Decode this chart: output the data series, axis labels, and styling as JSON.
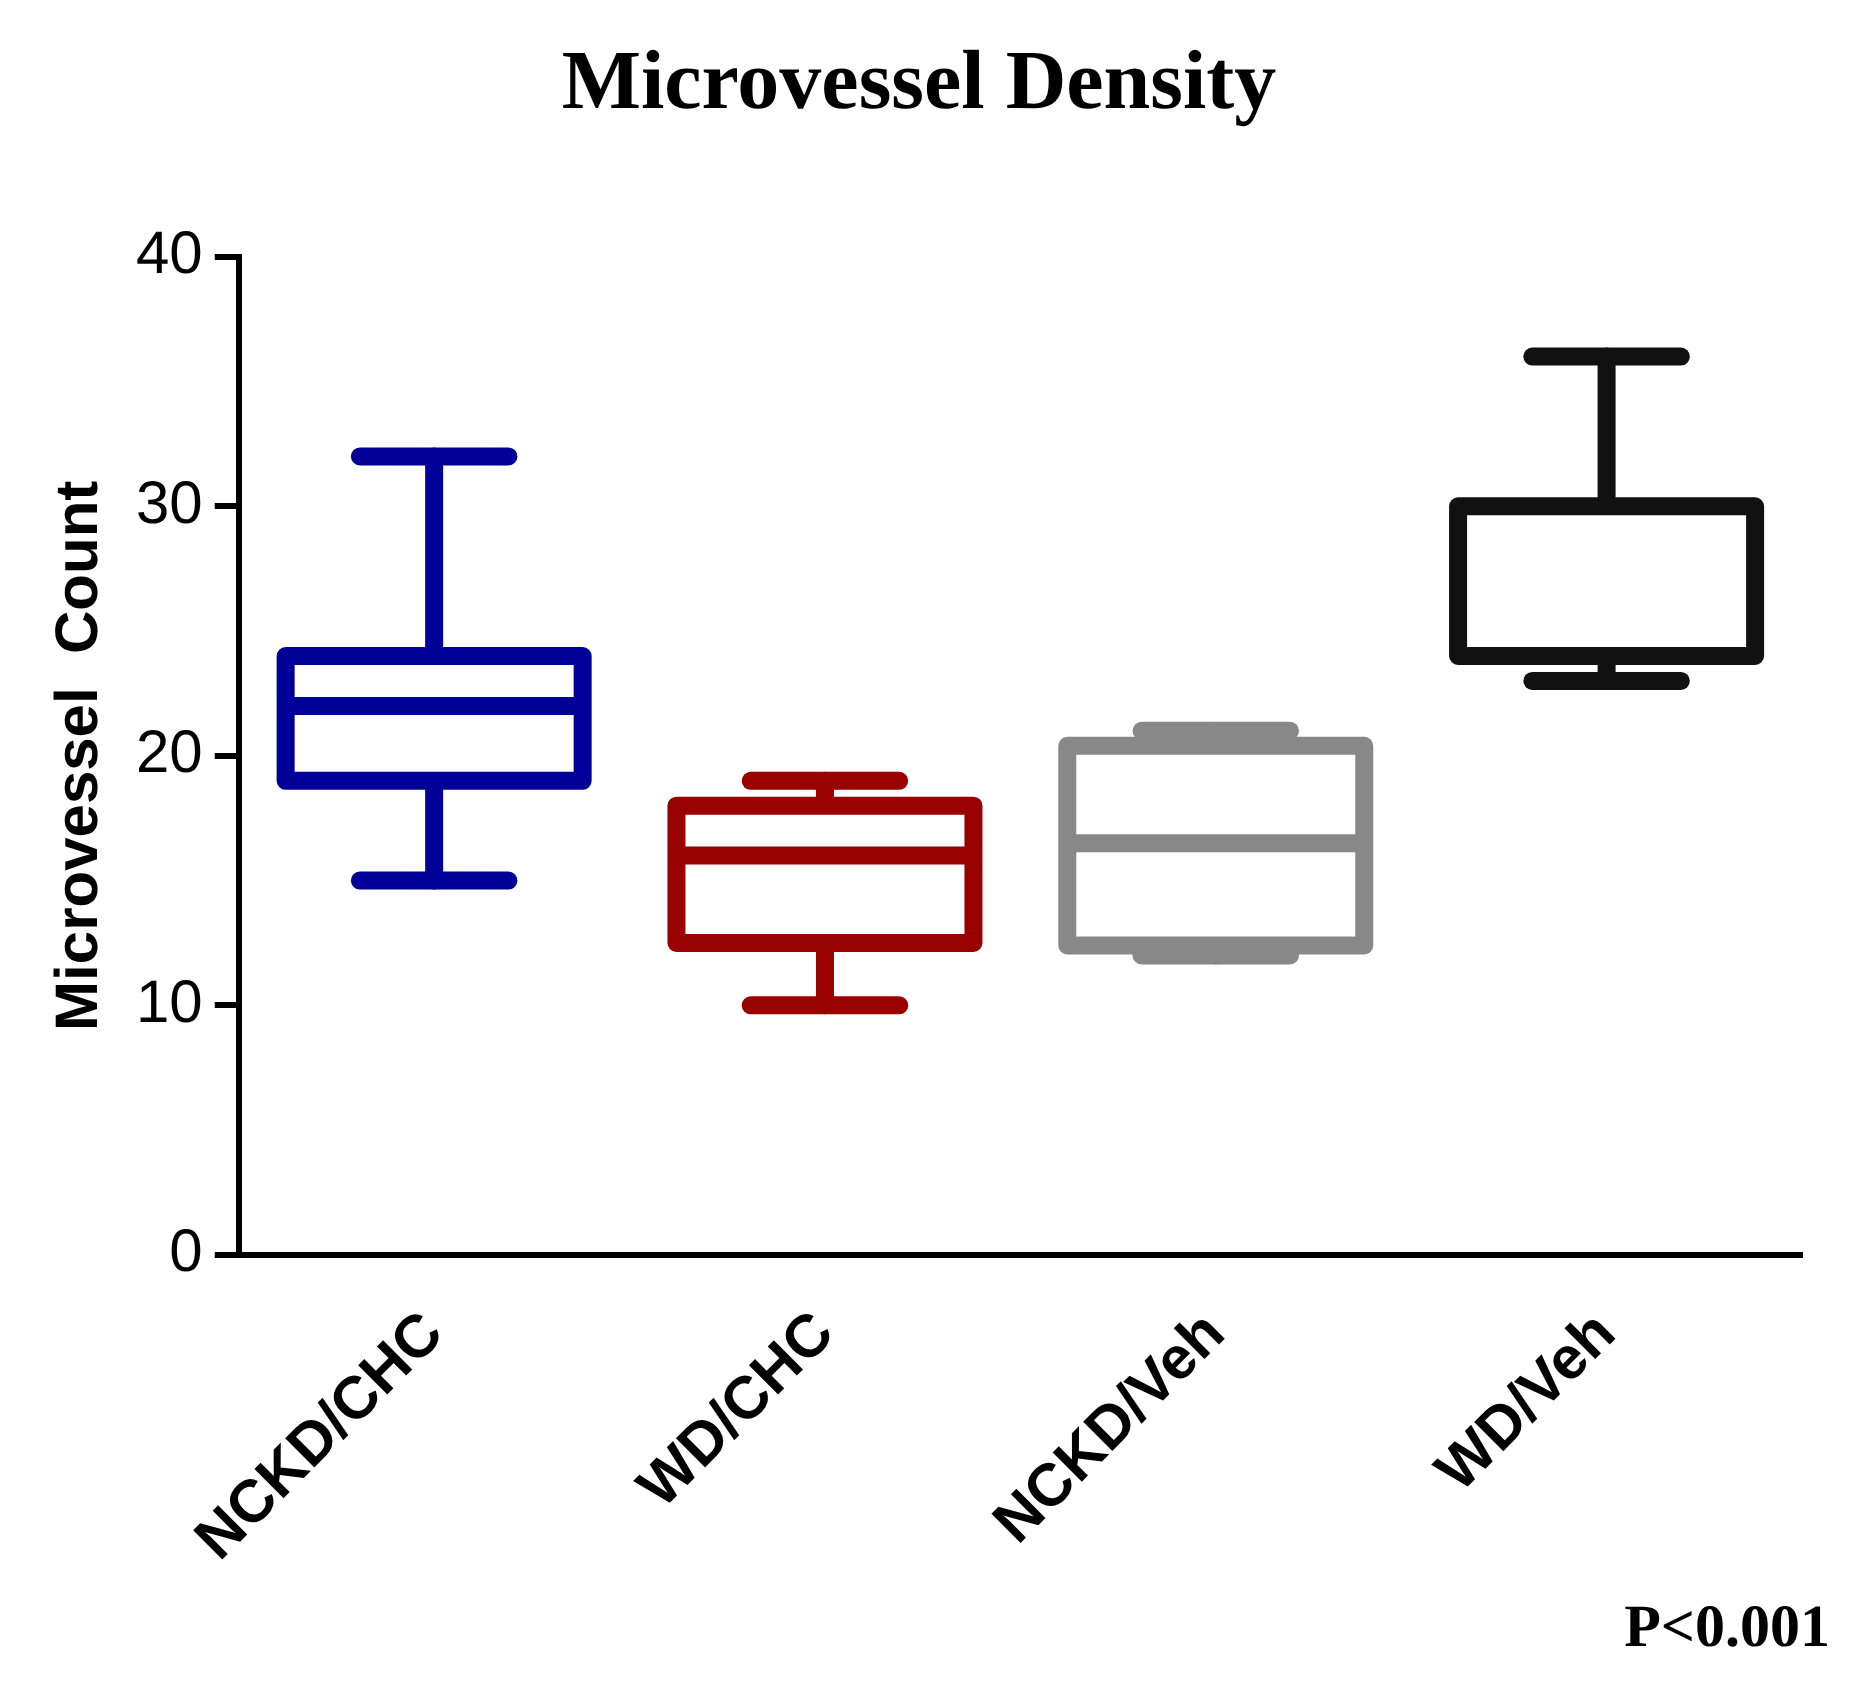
{
  "chart_data": {
    "type": "box",
    "title": "Microvessel Density",
    "ylabel": "Microvessel  Count",
    "categories": [
      "NCKD/CHC",
      "WD/CHC",
      "NCKD/Veh",
      "WD/Veh"
    ],
    "colors": [
      "#000099",
      "#990000",
      "#888888",
      "#111111"
    ],
    "boxes": [
      {
        "low": 15,
        "q1": 19,
        "median": 22,
        "q3": 24,
        "high": 32
      },
      {
        "low": 10,
        "q1": 12.5,
        "median": 16,
        "q3": 18,
        "high": 19
      },
      {
        "low": 12,
        "q1": 12.4,
        "median": 16.5,
        "q3": 20.4,
        "high": 21
      },
      {
        "low": 23,
        "q1": 24,
        "median": 24,
        "q3": 30,
        "high": 36
      }
    ],
    "ylim": [
      0,
      40
    ],
    "yticks": [
      0,
      10,
      20,
      30,
      40
    ],
    "grid": false,
    "annotations": [
      "P<0.001"
    ]
  }
}
